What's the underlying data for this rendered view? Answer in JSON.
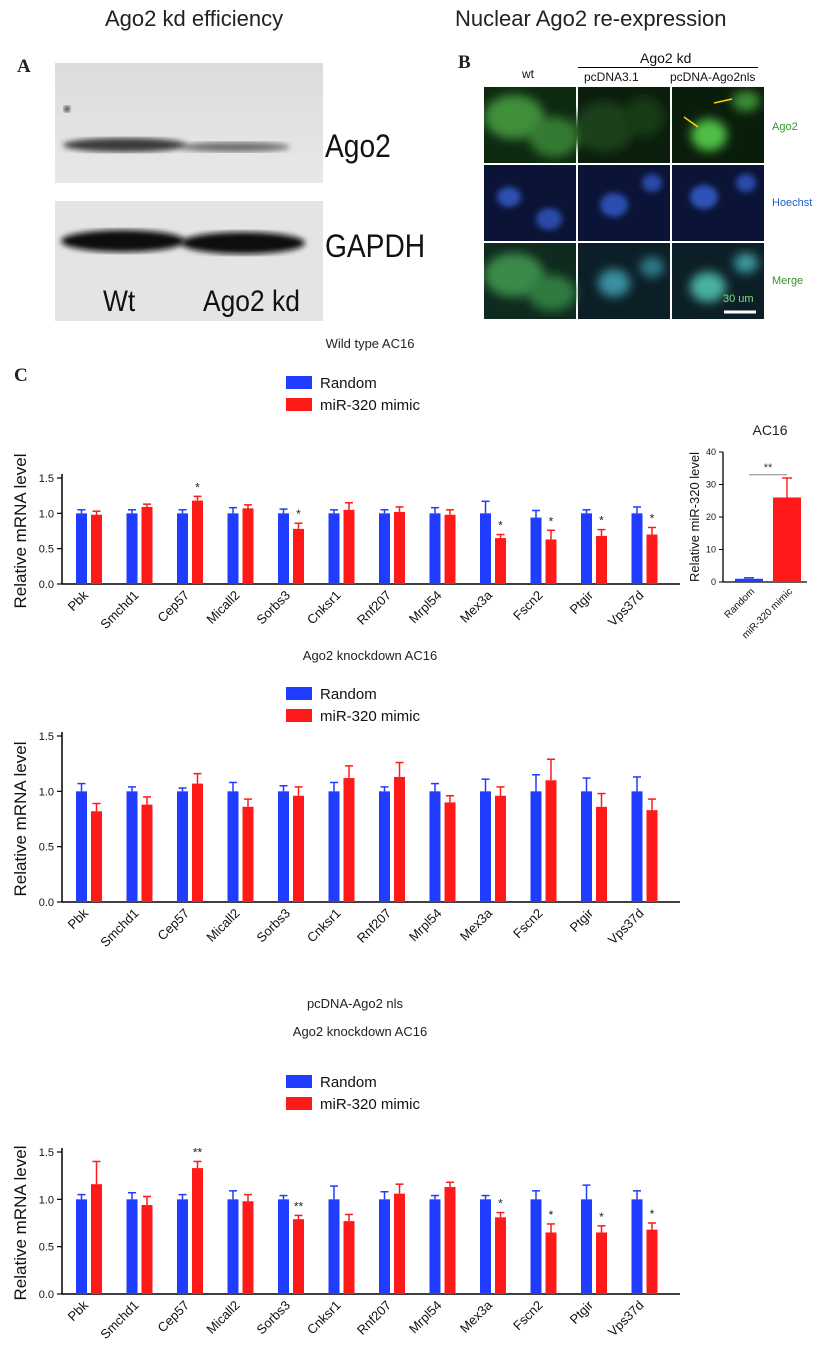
{
  "panelA": {
    "heading": "Ago2 kd efficiency",
    "letter": "A",
    "labels": [
      "Ago2",
      "GAPDH"
    ],
    "lanes": [
      "Wt",
      "Ago2 kd"
    ]
  },
  "panelB": {
    "heading": "Nuclear Ago2 re-expression",
    "letter": "B",
    "group_label": "Ago2 kd",
    "col_wt": "wt",
    "col_pcdna": "pcDNA3.1",
    "col_ago2nls": "pcDNA-Ago2nls",
    "rows": [
      {
        "label": "Ago2",
        "color": "#2e9a2e"
      },
      {
        "label": "Hoechst",
        "color": "#1f5fcf"
      },
      {
        "label": "Merge",
        "color": "#3c8c2a"
      }
    ],
    "scale_bar": "30 um",
    "colors": {
      "green_channel": "#3fa63a",
      "blue_channel": "#1b2f7a",
      "arrow": "#ffd400"
    }
  },
  "panelC": {
    "letter": "C"
  },
  "colors": {
    "random": "#1f3cff",
    "mimic": "#ff1a1a"
  },
  "chart_data": [
    {
      "id": "chart1",
      "type": "bar",
      "title": "Wild type AC16",
      "ylabel": "Relative mRNA level",
      "ylim": [
        0,
        1.5
      ],
      "yticks": [
        "0.0",
        "0.5",
        "1.0",
        "1.5"
      ],
      "categories": [
        "Pbk",
        "Smchd1",
        "Cep57",
        "Micall2",
        "Sorbs3",
        "Cnksr1",
        "Rnf207",
        "Mrpl54",
        "Mex3a",
        "Fscn2",
        "Ptgir",
        "Vps37d"
      ],
      "series": [
        {
          "name": "Random",
          "values": [
            1.0,
            1.0,
            1.0,
            1.0,
            1.0,
            1.0,
            1.0,
            1.0,
            1.0,
            0.94,
            1.0,
            1.0
          ],
          "errors": [
            0.05,
            0.05,
            0.05,
            0.08,
            0.06,
            0.05,
            0.05,
            0.08,
            0.17,
            0.1,
            0.05,
            0.09
          ]
        },
        {
          "name": "miR-320 mimic",
          "values": [
            0.98,
            1.09,
            1.18,
            1.07,
            0.78,
            1.05,
            1.02,
            0.98,
            0.65,
            0.63,
            0.68,
            0.7
          ],
          "errors": [
            0.05,
            0.04,
            0.06,
            0.05,
            0.08,
            0.1,
            0.07,
            0.07,
            0.05,
            0.13,
            0.09,
            0.1
          ]
        }
      ],
      "significance": [
        "",
        "",
        "*",
        "",
        "*",
        "",
        "",
        "",
        "*",
        "*",
        "*",
        "*"
      ],
      "legend": "top-center"
    },
    {
      "id": "chart_ac16",
      "type": "bar",
      "title": "AC16",
      "ylabel": "Relative miR-320 level",
      "ylim": [
        0,
        40
      ],
      "yticks": [
        "0",
        "10",
        "20",
        "30",
        "40"
      ],
      "categories": [
        "Random",
        "miR-320 mimic"
      ],
      "values": [
        1.0,
        26.0
      ],
      "errors": [
        0.3,
        6.0
      ],
      "significance": "**"
    },
    {
      "id": "chart2",
      "type": "bar",
      "title": "Ago2 knockdown AC16",
      "ylabel": "Relative mRNA level",
      "ylim": [
        0,
        1.5
      ],
      "yticks": [
        "0.0",
        "0.5",
        "1.0",
        "1.5"
      ],
      "categories": [
        "Pbk",
        "Smchd1",
        "Cep57",
        "Micall2",
        "Sorbs3",
        "Cnksr1",
        "Rnf207",
        "Mrpl54",
        "Mex3a",
        "Fscn2",
        "Ptgir",
        "Vps37d"
      ],
      "series": [
        {
          "name": "Random",
          "values": [
            1.0,
            1.0,
            1.0,
            1.0,
            1.0,
            1.0,
            1.0,
            1.0,
            1.0,
            1.0,
            1.0,
            1.0
          ],
          "errors": [
            0.07,
            0.04,
            0.03,
            0.08,
            0.05,
            0.08,
            0.04,
            0.07,
            0.11,
            0.15,
            0.12,
            0.13
          ]
        },
        {
          "name": "miR-320 mimic",
          "values": [
            0.82,
            0.88,
            1.07,
            0.86,
            0.96,
            1.12,
            1.13,
            0.9,
            0.96,
            1.1,
            0.86,
            0.83
          ],
          "errors": [
            0.07,
            0.07,
            0.09,
            0.07,
            0.08,
            0.11,
            0.13,
            0.06,
            0.08,
            0.19,
            0.12,
            0.1
          ]
        }
      ],
      "legend": "top-center"
    },
    {
      "id": "chart3",
      "type": "bar",
      "title": "Ago2 knockdown AC16",
      "subtitle": "pcDNA-Ago2 nls",
      "ylabel": "Relative mRNA level",
      "ylim": [
        0,
        1.5
      ],
      "yticks": [
        "0.0",
        "0.5",
        "1.0",
        "1.5"
      ],
      "categories": [
        "Pbk",
        "Smchd1",
        "Cep57",
        "Micall2",
        "Sorbs3",
        "Cnksr1",
        "Rnf207",
        "Mrpl54",
        "Mex3a",
        "Fscn2",
        "Ptgir",
        "Vps37d"
      ],
      "series": [
        {
          "name": "Random",
          "values": [
            1.0,
            1.0,
            1.0,
            1.0,
            1.0,
            1.0,
            1.0,
            1.0,
            1.0,
            1.0,
            1.0,
            1.0
          ],
          "errors": [
            0.05,
            0.07,
            0.05,
            0.09,
            0.04,
            0.14,
            0.08,
            0.04,
            0.04,
            0.09,
            0.15,
            0.09
          ]
        },
        {
          "name": "miR-320 mimic",
          "values": [
            1.16,
            0.94,
            1.33,
            0.98,
            0.79,
            0.77,
            1.06,
            1.13,
            0.81,
            0.65,
            0.65,
            0.68
          ],
          "errors": [
            0.24,
            0.09,
            0.07,
            0.07,
            0.04,
            0.07,
            0.1,
            0.05,
            0.05,
            0.09,
            0.07,
            0.07
          ]
        }
      ],
      "significance": [
        "",
        "",
        "**",
        "",
        "**",
        "",
        "",
        "",
        "*",
        "*",
        "*",
        "*"
      ],
      "legend": "top-center"
    }
  ]
}
